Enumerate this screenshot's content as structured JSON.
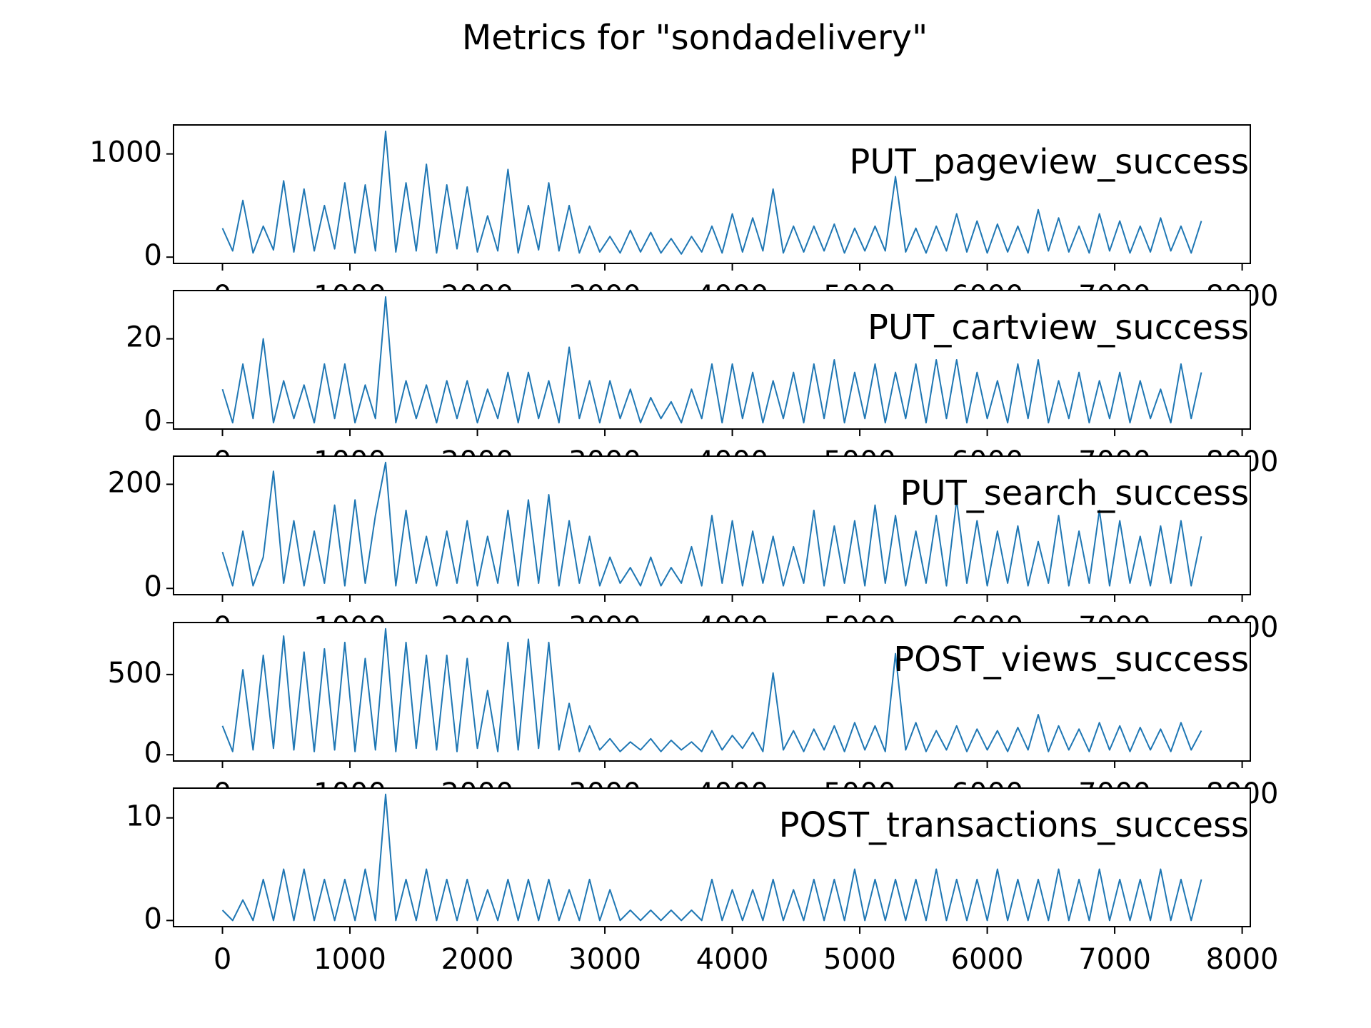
{
  "title": "Metrics for \"sondadelivery\"",
  "chart_data": [
    {
      "type": "line",
      "title": "PUT_pageview_success",
      "color": "#1f77b4",
      "x": [
        0,
        80,
        160,
        240,
        320,
        400,
        480,
        560,
        640,
        720,
        800,
        880,
        960,
        1040,
        1120,
        1200,
        1280,
        1360,
        1440,
        1520,
        1600,
        1680,
        1760,
        1840,
        1920,
        2000,
        2080,
        2160,
        2240,
        2320,
        2400,
        2480,
        2560,
        2640,
        2720,
        2800,
        2880,
        2960,
        3040,
        3120,
        3200,
        3280,
        3360,
        3440,
        3520,
        3600,
        3680,
        3760,
        3840,
        3920,
        4000,
        4080,
        4160,
        4240,
        4320,
        4400,
        4480,
        4560,
        4640,
        4720,
        4800,
        4880,
        4960,
        5040,
        5120,
        5200,
        5280,
        5360,
        5440,
        5520,
        5600,
        5680,
        5760,
        5840,
        5920,
        6000,
        6080,
        6160,
        6240,
        6320,
        6400,
        6480,
        6560,
        6640,
        6720,
        6800,
        6880,
        6960,
        7040,
        7120,
        7200,
        7280,
        7360,
        7440,
        7520,
        7600,
        7680
      ],
      "values": [
        280,
        60,
        550,
        40,
        300,
        70,
        740,
        50,
        660,
        60,
        500,
        80,
        720,
        40,
        700,
        60,
        1220,
        50,
        720,
        60,
        900,
        40,
        700,
        80,
        680,
        50,
        400,
        60,
        850,
        40,
        500,
        70,
        720,
        60,
        500,
        40,
        300,
        50,
        200,
        40,
        260,
        50,
        240,
        40,
        180,
        30,
        200,
        50,
        300,
        40,
        420,
        50,
        380,
        60,
        660,
        40,
        300,
        50,
        300,
        60,
        320,
        40,
        280,
        60,
        300,
        60,
        780,
        50,
        280,
        40,
        300,
        60,
        420,
        50,
        350,
        40,
        320,
        50,
        300,
        40,
        460,
        60,
        380,
        50,
        300,
        40,
        420,
        60,
        350,
        40,
        300,
        50,
        380,
        60,
        300,
        40,
        350
      ],
      "xlim": [
        -384,
        8064
      ],
      "ylim": [
        -61,
        1281
      ],
      "xticks": [
        0,
        1000,
        2000,
        3000,
        4000,
        5000,
        6000,
        7000,
        8000
      ],
      "yticks": [
        0,
        1000
      ]
    },
    {
      "type": "line",
      "title": "PUT_cartview_success",
      "color": "#1f77b4",
      "x": [
        0,
        80,
        160,
        240,
        320,
        400,
        480,
        560,
        640,
        720,
        800,
        880,
        960,
        1040,
        1120,
        1200,
        1280,
        1360,
        1440,
        1520,
        1600,
        1680,
        1760,
        1840,
        1920,
        2000,
        2080,
        2160,
        2240,
        2320,
        2400,
        2480,
        2560,
        2640,
        2720,
        2800,
        2880,
        2960,
        3040,
        3120,
        3200,
        3280,
        3360,
        3440,
        3520,
        3600,
        3680,
        3760,
        3840,
        3920,
        4000,
        4080,
        4160,
        4240,
        4320,
        4400,
        4480,
        4560,
        4640,
        4720,
        4800,
        4880,
        4960,
        5040,
        5120,
        5200,
        5280,
        5360,
        5440,
        5520,
        5600,
        5680,
        5760,
        5840,
        5920,
        6000,
        6080,
        6160,
        6240,
        6320,
        6400,
        6480,
        6560,
        6640,
        6720,
        6800,
        6880,
        6960,
        7040,
        7120,
        7200,
        7280,
        7360,
        7440,
        7520,
        7600,
        7680
      ],
      "values": [
        8,
        0,
        14,
        1,
        20,
        0,
        10,
        1,
        9,
        0,
        14,
        1,
        14,
        0,
        9,
        1,
        30,
        0,
        10,
        1,
        9,
        0,
        10,
        1,
        10,
        0,
        8,
        1,
        12,
        0,
        12,
        1,
        10,
        0,
        18,
        1,
        10,
        0,
        10,
        1,
        8,
        0,
        6,
        1,
        5,
        0,
        8,
        1,
        14,
        0,
        14,
        1,
        12,
        0,
        10,
        1,
        12,
        0,
        14,
        1,
        15,
        0,
        12,
        1,
        14,
        0,
        12,
        1,
        14,
        0,
        15,
        1,
        15,
        0,
        12,
        1,
        10,
        0,
        14,
        1,
        15,
        0,
        10,
        1,
        12,
        0,
        10,
        1,
        12,
        0,
        10,
        1,
        8,
        0,
        14,
        1,
        12
      ],
      "xlim": [
        -384,
        8064
      ],
      "ylim": [
        -1.5,
        31.5
      ],
      "xticks": [
        0,
        1000,
        2000,
        3000,
        4000,
        5000,
        6000,
        7000,
        8000
      ],
      "yticks": [
        0,
        20
      ]
    },
    {
      "type": "line",
      "title": "PUT_search_success",
      "color": "#1f77b4",
      "x": [
        0,
        80,
        160,
        240,
        320,
        400,
        480,
        560,
        640,
        720,
        800,
        880,
        960,
        1040,
        1120,
        1200,
        1280,
        1360,
        1440,
        1520,
        1600,
        1680,
        1760,
        1840,
        1920,
        2000,
        2080,
        2160,
        2240,
        2320,
        2400,
        2480,
        2560,
        2640,
        2720,
        2800,
        2880,
        2960,
        3040,
        3120,
        3200,
        3280,
        3360,
        3440,
        3520,
        3600,
        3680,
        3760,
        3840,
        3920,
        4000,
        4080,
        4160,
        4240,
        4320,
        4400,
        4480,
        4560,
        4640,
        4720,
        4800,
        4880,
        4960,
        5040,
        5120,
        5200,
        5280,
        5360,
        5440,
        5520,
        5600,
        5680,
        5760,
        5840,
        5920,
        6000,
        6080,
        6160,
        6240,
        6320,
        6400,
        6480,
        6560,
        6640,
        6720,
        6800,
        6880,
        6960,
        7040,
        7120,
        7200,
        7280,
        7360,
        7440,
        7520,
        7600,
        7680
      ],
      "values": [
        70,
        5,
        110,
        5,
        60,
        225,
        10,
        130,
        5,
        110,
        10,
        160,
        5,
        170,
        10,
        140,
        242,
        5,
        150,
        10,
        100,
        5,
        110,
        10,
        130,
        5,
        100,
        10,
        150,
        5,
        170,
        10,
        180,
        5,
        130,
        10,
        100,
        5,
        60,
        10,
        40,
        5,
        60,
        5,
        40,
        10,
        80,
        5,
        140,
        10,
        130,
        5,
        110,
        10,
        100,
        5,
        80,
        10,
        150,
        5,
        120,
        10,
        130,
        5,
        160,
        10,
        140,
        5,
        110,
        10,
        140,
        5,
        170,
        10,
        130,
        5,
        110,
        10,
        120,
        5,
        90,
        10,
        140,
        5,
        110,
        10,
        150,
        5,
        130,
        10,
        100,
        5,
        120,
        10,
        130,
        5,
        100
      ],
      "xlim": [
        -384,
        8064
      ],
      "ylim": [
        -12,
        254
      ],
      "xticks": [
        0,
        1000,
        2000,
        3000,
        4000,
        5000,
        6000,
        7000,
        8000
      ],
      "yticks": [
        0,
        200
      ]
    },
    {
      "type": "line",
      "title": "POST_views_success",
      "color": "#1f77b4",
      "x": [
        0,
        80,
        160,
        240,
        320,
        400,
        480,
        560,
        640,
        720,
        800,
        880,
        960,
        1040,
        1120,
        1200,
        1280,
        1360,
        1440,
        1520,
        1600,
        1680,
        1760,
        1840,
        1920,
        2000,
        2080,
        2160,
        2240,
        2320,
        2400,
        2480,
        2560,
        2640,
        2720,
        2800,
        2880,
        2960,
        3040,
        3120,
        3200,
        3280,
        3360,
        3440,
        3520,
        3600,
        3680,
        3760,
        3840,
        3920,
        4000,
        4080,
        4160,
        4240,
        4320,
        4400,
        4480,
        4560,
        4640,
        4720,
        4800,
        4880,
        4960,
        5040,
        5120,
        5200,
        5280,
        5360,
        5440,
        5520,
        5600,
        5680,
        5760,
        5840,
        5920,
        6000,
        6080,
        6160,
        6240,
        6320,
        6400,
        6480,
        6560,
        6640,
        6720,
        6800,
        6880,
        6960,
        7040,
        7120,
        7200,
        7280,
        7360,
        7440,
        7520,
        7600,
        7680
      ],
      "values": [
        180,
        20,
        530,
        30,
        620,
        40,
        740,
        30,
        640,
        20,
        660,
        30,
        700,
        20,
        600,
        30,
        785,
        20,
        700,
        40,
        620,
        30,
        620,
        20,
        600,
        40,
        400,
        20,
        700,
        30,
        720,
        40,
        700,
        30,
        320,
        20,
        180,
        30,
        100,
        20,
        80,
        30,
        100,
        20,
        90,
        30,
        80,
        20,
        150,
        30,
        120,
        40,
        140,
        20,
        510,
        30,
        150,
        20,
        160,
        30,
        180,
        20,
        200,
        30,
        180,
        20,
        630,
        30,
        200,
        20,
        150,
        30,
        180,
        20,
        160,
        30,
        150,
        20,
        170,
        30,
        250,
        20,
        180,
        30,
        160,
        20,
        200,
        30,
        180,
        20,
        170,
        30,
        160,
        20,
        200,
        30,
        150
      ],
      "xlim": [
        -384,
        8064
      ],
      "ylim": [
        -39,
        824
      ],
      "xticks": [
        0,
        1000,
        2000,
        3000,
        4000,
        5000,
        6000,
        7000,
        8000
      ],
      "yticks": [
        0,
        500
      ]
    },
    {
      "type": "line",
      "title": "POST_transactions_success",
      "color": "#1f77b4",
      "x": [
        0,
        80,
        160,
        240,
        320,
        400,
        480,
        560,
        640,
        720,
        800,
        880,
        960,
        1040,
        1120,
        1200,
        1280,
        1360,
        1440,
        1520,
        1600,
        1680,
        1760,
        1840,
        1920,
        2000,
        2080,
        2160,
        2240,
        2320,
        2400,
        2480,
        2560,
        2640,
        2720,
        2800,
        2880,
        2960,
        3040,
        3120,
        3200,
        3280,
        3360,
        3440,
        3520,
        3600,
        3680,
        3760,
        3840,
        3920,
        4000,
        4080,
        4160,
        4240,
        4320,
        4400,
        4480,
        4560,
        4640,
        4720,
        4800,
        4880,
        4960,
        5040,
        5120,
        5200,
        5280,
        5360,
        5440,
        5520,
        5600,
        5680,
        5760,
        5840,
        5920,
        6000,
        6080,
        6160,
        6240,
        6320,
        6400,
        6480,
        6560,
        6640,
        6720,
        6800,
        6880,
        6960,
        7040,
        7120,
        7200,
        7280,
        7360,
        7440,
        7520,
        7600,
        7680
      ],
      "values": [
        1,
        0,
        2,
        0,
        4,
        0,
        5,
        0,
        5,
        0,
        4,
        0,
        4,
        0,
        5,
        0,
        12.3,
        0,
        4,
        0,
        5,
        0,
        4,
        0,
        4,
        0,
        3,
        0,
        4,
        0,
        4,
        0,
        4,
        0,
        3,
        0,
        4,
        0,
        3,
        0,
        1,
        0,
        1,
        0,
        1,
        0,
        1,
        0,
        4,
        0,
        3,
        0,
        3,
        0,
        4,
        0,
        3,
        0,
        4,
        0,
        4,
        0,
        5,
        0,
        4,
        0,
        4,
        0,
        4,
        0,
        5,
        0,
        4,
        0,
        4,
        0,
        5,
        0,
        4,
        0,
        4,
        0,
        5,
        0,
        4,
        0,
        5,
        0,
        4,
        0,
        4,
        0,
        5,
        0,
        4,
        0,
        4
      ],
      "xlim": [
        -384,
        8064
      ],
      "ylim": [
        -0.6,
        12.9
      ],
      "xticks": [
        0,
        1000,
        2000,
        3000,
        4000,
        5000,
        6000,
        7000,
        8000
      ],
      "yticks": [
        0,
        10
      ]
    }
  ]
}
